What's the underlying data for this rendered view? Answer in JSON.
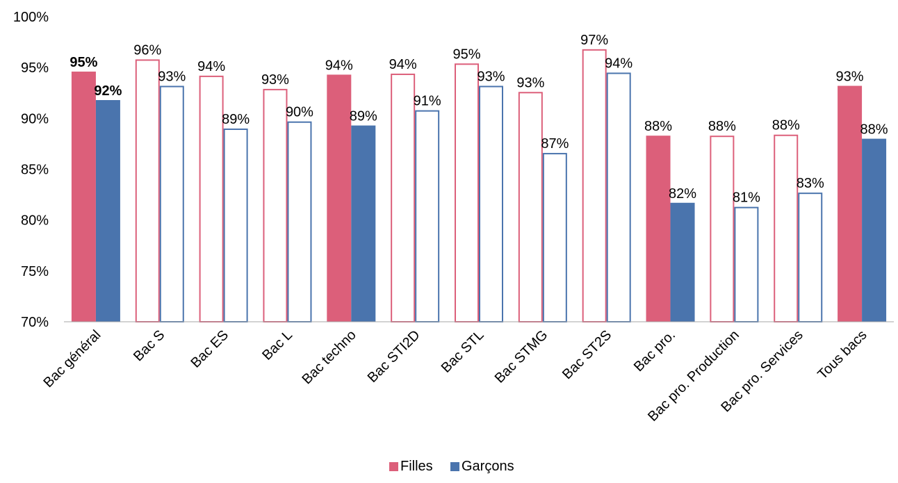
{
  "chart_data": {
    "type": "bar",
    "categories": [
      "Bac général",
      "Bac S",
      "Bac ES",
      "Bac L",
      "Bac techno",
      "Bac STI2D",
      "Bac STL",
      "Bac STMG",
      "Bac ST2S",
      "Bac pro.",
      "Bac pro. Production",
      "Bac pro. Services",
      "Tous bacs"
    ],
    "series": [
      {
        "name": "Filles",
        "color": "#dc5f7a",
        "values": [
          94.6,
          95.8,
          94.2,
          92.9,
          94.3,
          94.4,
          95.4,
          92.6,
          96.8,
          88.3,
          88.3,
          88.4,
          93.2
        ],
        "labels": [
          "95%",
          "96%",
          "94%",
          "93%",
          "94%",
          "94%",
          "95%",
          "93%",
          "97%",
          "88%",
          "88%",
          "88%",
          "93%"
        ]
      },
      {
        "name": "Garçons",
        "color": "#4a74ad",
        "values": [
          91.8,
          93.2,
          89.0,
          89.7,
          89.3,
          90.8,
          93.2,
          86.6,
          94.5,
          81.7,
          81.3,
          82.7,
          88.0
        ],
        "labels": [
          "92%",
          "93%",
          "89%",
          "90%",
          "89%",
          "91%",
          "93%",
          "87%",
          "94%",
          "82%",
          "81%",
          "83%",
          "88%"
        ]
      }
    ],
    "filled": [
      true,
      false,
      false,
      false,
      true,
      false,
      false,
      false,
      false,
      true,
      false,
      false,
      true
    ],
    "bold_labels": [
      true,
      false,
      false,
      false,
      false,
      false,
      false,
      false,
      false,
      false,
      false,
      false,
      false
    ],
    "ylim": [
      70,
      100
    ],
    "yticks": [
      "70%",
      "75%",
      "80%",
      "85%",
      "90%",
      "95%",
      "100%"
    ],
    "ytick_values": [
      70,
      75,
      80,
      85,
      90,
      95,
      100
    ],
    "grid": false,
    "legend": {
      "position": "bottom-center",
      "items": [
        "Filles",
        "Garçons"
      ]
    },
    "title": "",
    "xlabel": "",
    "ylabel": ""
  }
}
